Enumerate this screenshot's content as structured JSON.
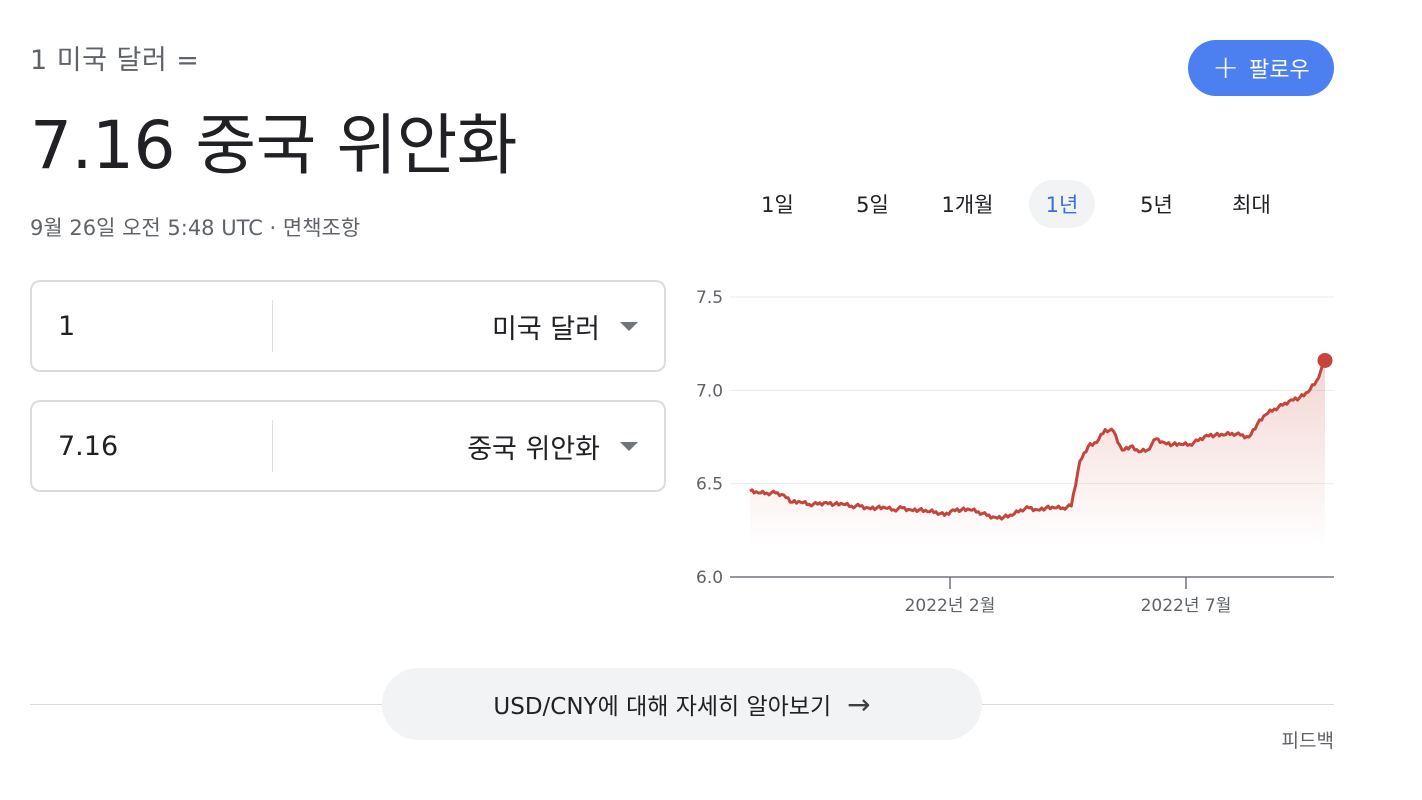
{
  "header": {
    "subtitle": "1 미국 달러 =",
    "result": "7.16 중국 위안화",
    "timestamp": "9월 26일 오전 5:48 UTC · ",
    "disclaimer": "면책조항"
  },
  "follow_button": {
    "icon": "plus-icon",
    "label": "팔로우"
  },
  "converter": {
    "from": {
      "amount": "1",
      "currency": "미국 달러"
    },
    "to": {
      "amount": "7.16",
      "currency": "중국 위안화"
    }
  },
  "tabs": [
    {
      "label": "1일",
      "active": false
    },
    {
      "label": "5일",
      "active": false
    },
    {
      "label": "1개월",
      "active": false
    },
    {
      "label": "1년",
      "active": true
    },
    {
      "label": "5년",
      "active": false
    },
    {
      "label": "최대",
      "active": false
    }
  ],
  "chart_data": {
    "type": "line",
    "title": "",
    "ylim": [
      6.0,
      7.5
    ],
    "yticks": [
      "7.5",
      "7.0",
      "6.5",
      "6.0"
    ],
    "xtick_labels": [
      "2022년 2월",
      "2022년 7월"
    ],
    "grid": true,
    "line_color": "#c5453a",
    "series": [
      {
        "values": [
          6.46,
          6.45,
          6.45,
          6.45,
          6.44,
          6.4,
          6.4,
          6.39,
          6.39,
          6.4,
          6.39,
          6.39,
          6.38,
          6.38,
          6.37,
          6.37,
          6.37,
          6.36,
          6.37,
          6.36,
          6.36,
          6.35,
          6.35,
          6.33,
          6.36,
          6.36,
          6.36,
          6.35,
          6.33,
          6.32,
          6.32,
          6.33,
          6.36,
          6.37,
          6.36,
          6.37,
          6.37,
          6.37,
          6.38,
          6.62,
          6.7,
          6.72,
          6.79,
          6.78,
          6.68,
          6.7,
          6.67,
          6.68,
          6.74,
          6.72,
          6.71,
          6.71,
          6.71,
          6.73,
          6.76,
          6.76,
          6.76,
          6.77,
          6.76,
          6.75,
          6.82,
          6.87,
          6.9,
          6.92,
          6.95,
          6.96,
          6.99,
          7.05,
          7.16
        ]
      }
    ]
  },
  "learn_more": {
    "label": "USD/CNY에 대해 자세히 알아보기",
    "icon": "arrow-right-icon"
  },
  "feedback": "피드백"
}
